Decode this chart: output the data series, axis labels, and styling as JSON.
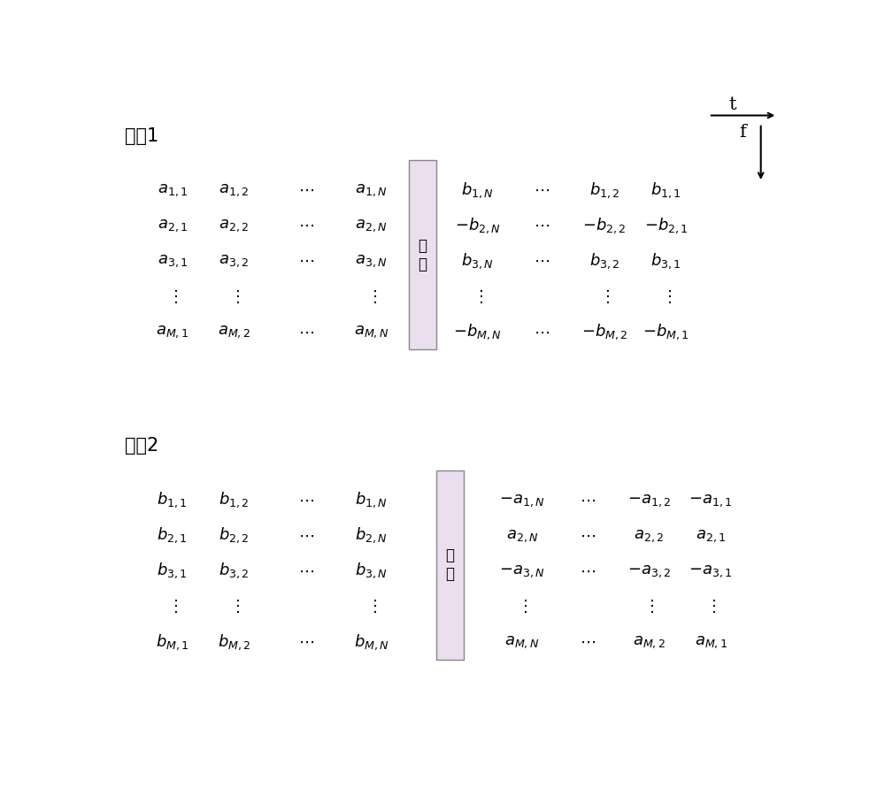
{
  "bg_color": "#ffffff",
  "antenna1_label": "天线1",
  "antenna2_label": "天线2",
  "gap_label1": "间\n隔",
  "gap_label2": "间\n隔",
  "t_label": "t",
  "f_label": "f",
  "ant1_left_rows": [
    [
      "a_{1,1}",
      "a_{1,2}",
      "\\cdots",
      "a_{1,N}"
    ],
    [
      "a_{2,1}",
      "a_{2,2}",
      "\\cdots",
      "a_{2,N}"
    ],
    [
      "a_{3,1}",
      "a_{3,2}",
      "\\cdots",
      "a_{3,N}"
    ],
    [
      "\\vdots",
      "\\vdots",
      "",
      "\\vdots"
    ],
    [
      "a_{M,1}",
      "a_{M,2}",
      "\\cdots",
      "a_{M,N}"
    ]
  ],
  "ant1_right_rows": [
    [
      "b_{1,N}",
      "\\cdots",
      "b_{1,2}",
      "b_{1,1}"
    ],
    [
      "-b_{2,N}",
      "\\cdots",
      "-b_{2,2}",
      "-b_{2,1}"
    ],
    [
      "b_{3,N}",
      "\\cdots",
      "b_{3,2}",
      "b_{3,1}"
    ],
    [
      "\\vdots",
      "",
      "\\vdots",
      "\\vdots"
    ],
    [
      "-b_{M,N}",
      "\\cdots",
      "-b_{M,2}",
      "-b_{M,1}"
    ]
  ],
  "ant2_left_rows": [
    [
      "b_{1,1}",
      "b_{1,2}",
      "\\cdots",
      "b_{1,N}"
    ],
    [
      "b_{2,1}",
      "b_{2,2}",
      "\\cdots",
      "b_{2,N}"
    ],
    [
      "b_{3,1}",
      "b_{3,2}",
      "\\cdots",
      "b_{3,N}"
    ],
    [
      "\\vdots",
      "\\vdots",
      "",
      "\\vdots"
    ],
    [
      "b_{M,1}",
      "b_{M,2}",
      "\\cdots",
      "b_{M,N}"
    ]
  ],
  "ant2_right_rows": [
    [
      "-a_{1,N}",
      "\\cdots",
      "-a_{1,2}",
      "-a_{1,1}"
    ],
    [
      "a_{2,N}",
      "\\cdots",
      "a_{2,2}",
      "a_{2,1}"
    ],
    [
      "-a_{3,N}",
      "\\cdots",
      "-a_{3,2}",
      "-a_{3,1}"
    ],
    [
      "\\vdots",
      "",
      "\\vdots",
      "\\vdots"
    ],
    [
      "a_{M,N}",
      "\\cdots",
      "a_{M,2}",
      "a_{M,1}"
    ]
  ],
  "box_edge": "#888888",
  "font_size": 13,
  "label_font_size": 15
}
